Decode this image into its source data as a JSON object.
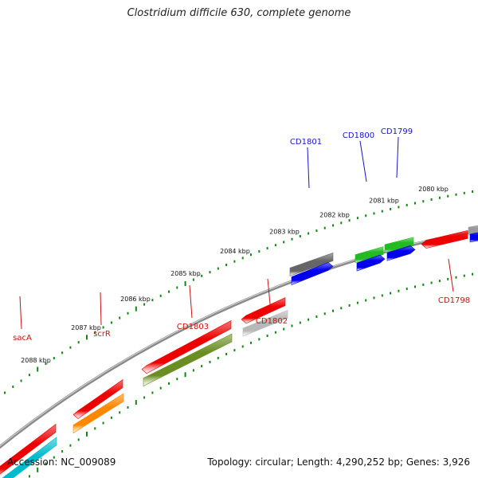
{
  "title": "Clostridium difficile 630, complete genome",
  "footer": {
    "accession": "Accession: NC_009089",
    "stats": "Topology: circular; Length: 4,290,252 bp; Genes: 3,926"
  },
  "colors": {
    "backbone": "#8a8a8a",
    "tick": "#118811",
    "forward_label": "#1515cc",
    "reverse_label": "#cc1111"
  },
  "tick_labels": [
    "2088 kbp",
    "2087 kbp",
    "2086 kbp",
    "2085 kbp",
    "2084 kbp",
    "2083 kbp",
    "2082 kbp",
    "2081 kbp",
    "2080 kbp"
  ],
  "gene_labels": {
    "forward": [
      "CD1801",
      "CD1800",
      "CD1799"
    ],
    "reverse": [
      "sacA",
      "scrR",
      "CD1803",
      "CD1802",
      "CD1798"
    ]
  },
  "features": [
    {
      "gene": "",
      "strand": "forward",
      "color": "#666666"
    },
    {
      "gene": "",
      "strand": "forward",
      "color": "#0000ee"
    },
    {
      "gene": "",
      "strand": "forward",
      "color": "#22bb22"
    },
    {
      "gene": "",
      "strand": "forward",
      "color": "#0000ee"
    },
    {
      "gene": "",
      "strand": "forward",
      "color": "#22bb22"
    },
    {
      "gene": "",
      "strand": "forward",
      "color": "#0000ee"
    },
    {
      "gene": "",
      "strand": "forward",
      "color": "#999999"
    },
    {
      "gene": "",
      "strand": "forward",
      "color": "#0000ee"
    },
    {
      "gene": "",
      "strand": "reverse",
      "color": "#ee0000"
    },
    {
      "gene": "",
      "strand": "reverse",
      "color": "#00bbcc"
    },
    {
      "gene": "",
      "strand": "reverse",
      "color": "#ee0000"
    },
    {
      "gene": "",
      "strand": "reverse",
      "color": "#ff8800"
    },
    {
      "gene": "",
      "strand": "reverse",
      "color": "#ee0000"
    },
    {
      "gene": "",
      "strand": "reverse",
      "color": "#6b8e23"
    },
    {
      "gene": "",
      "strand": "reverse",
      "color": "#ee0000"
    },
    {
      "gene": "",
      "strand": "reverse",
      "color": "#b8b8b8"
    },
    {
      "gene": "",
      "strand": "reverse",
      "color": "#ee0000"
    }
  ]
}
